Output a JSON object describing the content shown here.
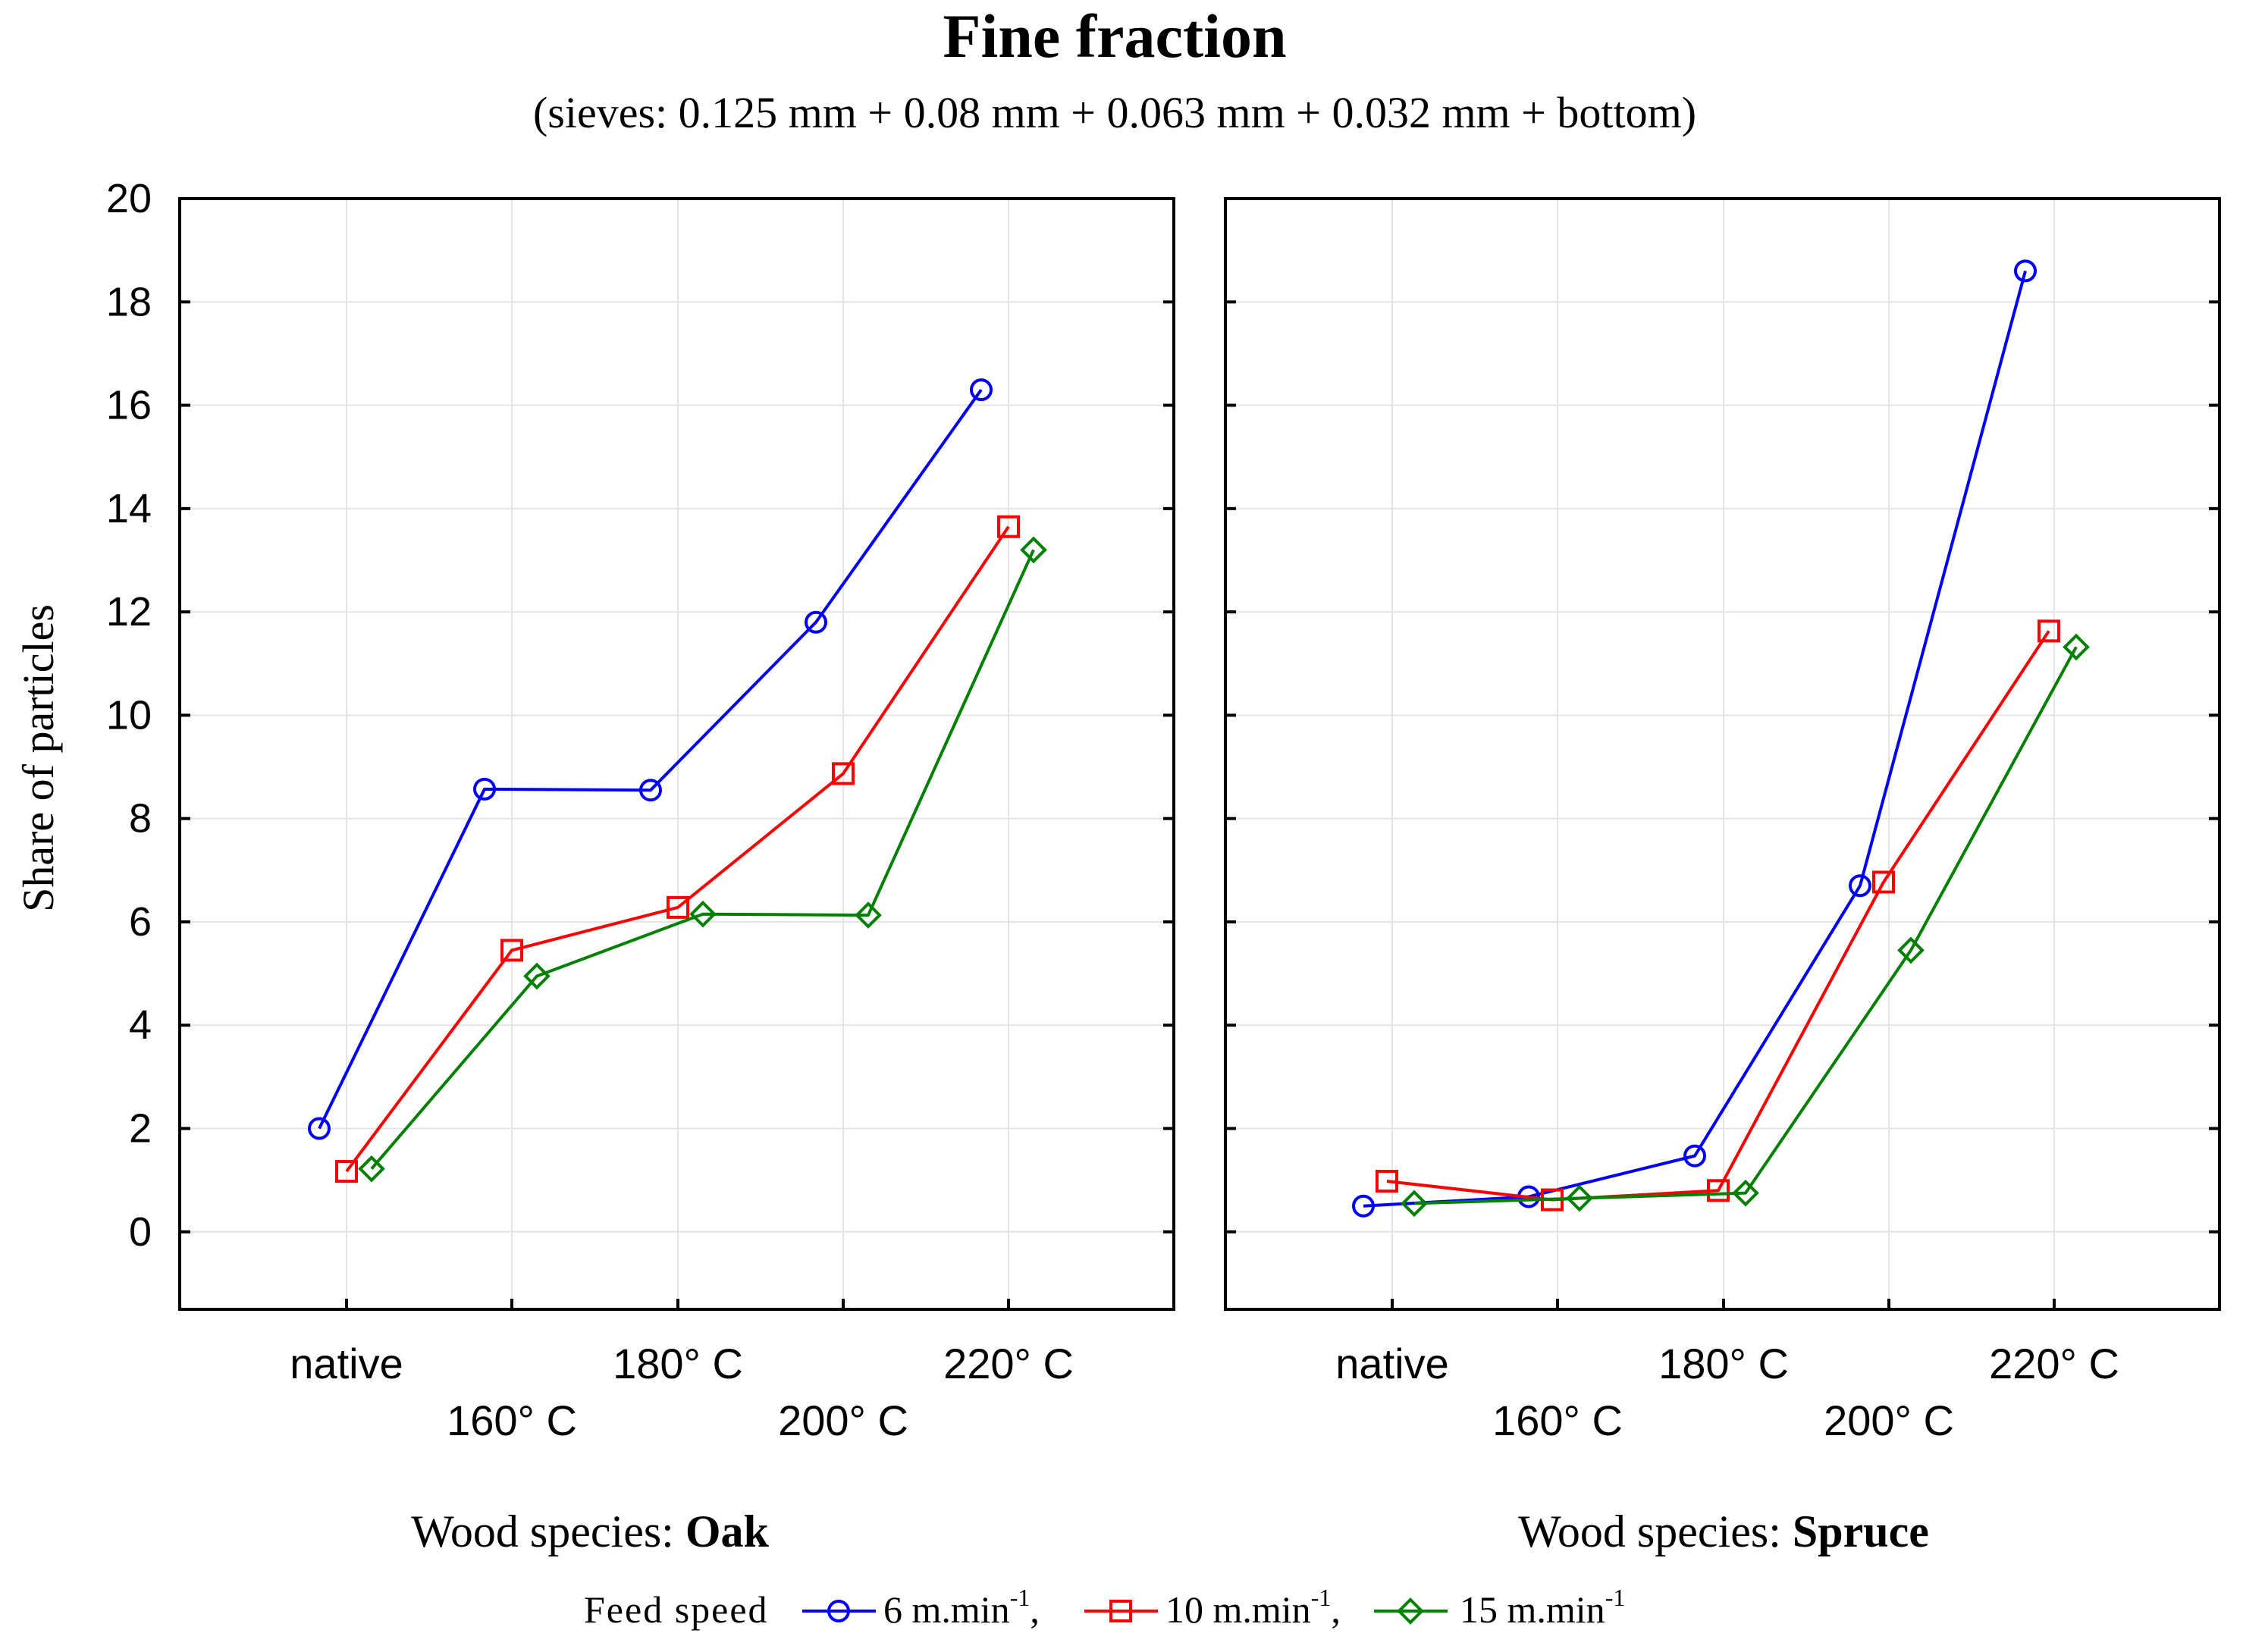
{
  "chart_data": {
    "type": "line",
    "title": "Fine fraction",
    "subtitle": "(sieves: 0.125 mm + 0.08 mm + 0.063 mm + 0.032 mm + bottom)",
    "ylabel": "Share of particles",
    "ylim": [
      -1.5,
      20
    ],
    "yticks": [
      0,
      2,
      4,
      6,
      8,
      10,
      12,
      14,
      16,
      18,
      20
    ],
    "categories": [
      "native",
      "160° C",
      "180° C",
      "200° C",
      "220° C"
    ],
    "grid": true,
    "legend": {
      "title": "Feed speed",
      "entries": [
        {
          "label": "6 m.min",
          "sup": "-1",
          "suffix": ",",
          "color": "#0000ff",
          "marker": "circle"
        },
        {
          "label": "10 m.min",
          "sup": "-1",
          "suffix": ",",
          "color": "#ff0000",
          "marker": "square"
        },
        {
          "label": "15 m.min",
          "sup": "-1",
          "suffix": "",
          "color": "#008000",
          "marker": "diamond"
        }
      ]
    },
    "panels": [
      {
        "xlabel_prefix": "Wood species: ",
        "xlabel_species": "Oak",
        "series": [
          {
            "name": "6 m.min-1",
            "color": "#0000ff",
            "marker": "circle",
            "values": [
              2.0,
              8.57,
              8.55,
              11.8,
              16.3
            ]
          },
          {
            "name": "10 m.min-1",
            "color": "#ff0000",
            "marker": "square",
            "values": [
              1.17,
              5.45,
              6.28,
              8.87,
              13.65
            ]
          },
          {
            "name": "15 m.min-1",
            "color": "#008000",
            "marker": "diamond",
            "values": [
              1.22,
              4.95,
              6.15,
              6.13,
              13.2
            ]
          }
        ]
      },
      {
        "xlabel_prefix": "Wood species: ",
        "xlabel_species": "Spruce",
        "series": [
          {
            "name": "6 m.min-1",
            "color": "#0000ff",
            "marker": "circle",
            "values": [
              0.5,
              0.68,
              1.47,
              6.7,
              18.6
            ]
          },
          {
            "name": "10 m.min-1",
            "color": "#ff0000",
            "marker": "square",
            "values": [
              0.98,
              0.62,
              0.8,
              6.77,
              11.63
            ]
          },
          {
            "name": "15 m.min-1",
            "color": "#008000",
            "marker": "diamond",
            "values": [
              0.55,
              0.65,
              0.75,
              5.45,
              11.32
            ]
          }
        ]
      }
    ]
  }
}
